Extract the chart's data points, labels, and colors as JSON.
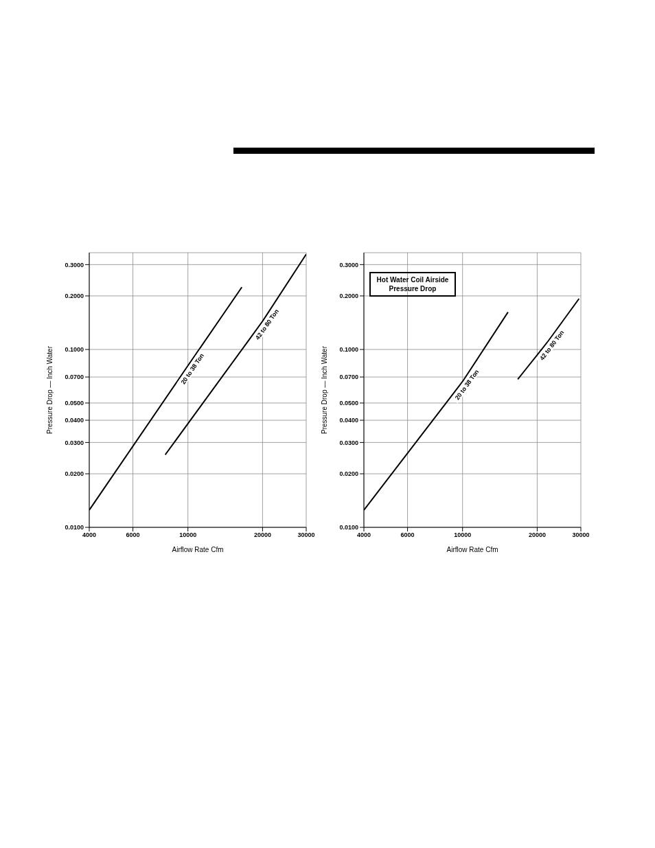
{
  "chart_data": [
    {
      "type": "line",
      "xlabel": "Airflow Rate Cfm",
      "ylabel": "Pressure Drop — Inch Water",
      "log": "xy",
      "grid": true,
      "legend": false,
      "marker": "none",
      "line_style": "solid",
      "xlim": [
        4000,
        30000
      ],
      "xticks": [
        4000,
        6000,
        10000,
        20000,
        30000
      ],
      "ylim": [
        0.01,
        0.35
      ],
      "yticks": [
        {
          "value": 0.01,
          "label": "0.0100"
        },
        {
          "value": 0.02,
          "label": "0.0200"
        },
        {
          "value": 0.03,
          "label": "0.0300"
        },
        {
          "value": 0.04,
          "label": "0.0400"
        },
        {
          "value": 0.05,
          "label": "0.0500"
        },
        {
          "value": 0.07,
          "label": "0.0700"
        },
        {
          "value": 0.1,
          "label": "0.1000"
        },
        {
          "value": 0.2,
          "label": "0.2000"
        },
        {
          "value": 0.3,
          "label": "0.3000"
        }
      ],
      "series": [
        {
          "name": "20 to 38 Ton",
          "color": "#000000",
          "x": [
            4000,
            10000,
            16500
          ],
          "values": [
            0.0125,
            0.081,
            0.224
          ]
        },
        {
          "name": "42 to 80 Ton",
          "color": "#000000",
          "x": [
            8100,
            20000,
            30000
          ],
          "values": [
            0.0256,
            0.144,
            0.343
          ]
        }
      ]
    },
    {
      "type": "line",
      "title": "Hot Water Coil Airside Pressure Drop",
      "xlabel": "Airflow Rate Cfm",
      "ylabel": "Pressure Drop — Inch Water",
      "log": "xy",
      "grid": true,
      "legend": false,
      "marker": "none",
      "line_style": "solid",
      "xlim": [
        4000,
        30000
      ],
      "xticks": [
        4000,
        6000,
        10000,
        20000,
        30000
      ],
      "ylim": [
        0.01,
        0.35
      ],
      "yticks": [
        {
          "value": 0.01,
          "label": "0.0100"
        },
        {
          "value": 0.02,
          "label": "0.0200"
        },
        {
          "value": 0.03,
          "label": "0.0300"
        },
        {
          "value": 0.04,
          "label": "0.0400"
        },
        {
          "value": 0.05,
          "label": "0.0500"
        },
        {
          "value": 0.07,
          "label": "0.0700"
        },
        {
          "value": 0.1,
          "label": "0.1000"
        },
        {
          "value": 0.2,
          "label": "0.2000"
        },
        {
          "value": 0.3,
          "label": "0.3000"
        }
      ],
      "series": [
        {
          "name": "20 to 38 Ton",
          "color": "#000000",
          "x": [
            4000,
            10000,
            15250
          ],
          "values": [
            0.0125,
            0.066,
            0.162
          ]
        },
        {
          "name": "42 to 80 Ton",
          "color": "#000000",
          "x": [
            16700,
            22000,
            29500
          ],
          "values": [
            0.068,
            0.11,
            0.193
          ]
        }
      ]
    }
  ]
}
